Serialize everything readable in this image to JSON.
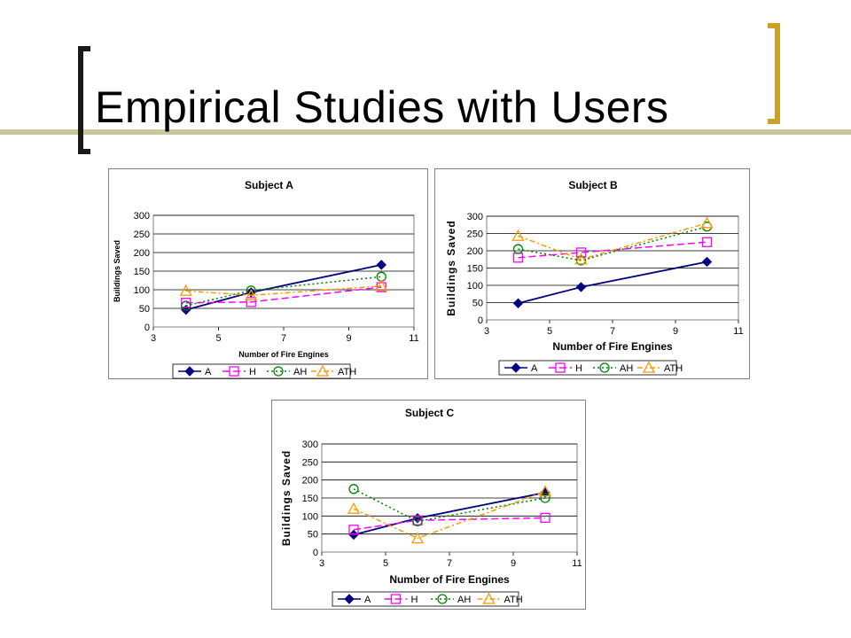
{
  "slide": {
    "title": "Empirical Studies with Users",
    "accent_color": "#c9a227",
    "bracket_color": "#1a1a1a",
    "rule_color": "#c8c89a"
  },
  "chart_data": [
    {
      "type": "line",
      "title": "Subject A",
      "xlabel": "Number of Fire Engines",
      "ylabel": "Buildings Saved",
      "xlim": [
        3,
        11
      ],
      "ylim": [
        0,
        300
      ],
      "xticks": [
        3,
        5,
        7,
        9,
        11
      ],
      "yticks": [
        0,
        50,
        100,
        150,
        200,
        250,
        300
      ],
      "grid": "horizontal",
      "legend": "bottom",
      "x": [
        4,
        6,
        10
      ],
      "series": [
        {
          "name": "A",
          "values": [
            46,
            93,
            167
          ],
          "color": "#000080",
          "dash": "",
          "marker": "diamond"
        },
        {
          "name": "H",
          "values": [
            65,
            67,
            107
          ],
          "color": "#ff00ff",
          "dash": "8,4",
          "marker": "square"
        },
        {
          "name": "AH",
          "values": [
            57,
            98,
            135
          ],
          "color": "#008000",
          "dash": "2,3",
          "marker": "circle"
        },
        {
          "name": "ATH",
          "values": [
            97,
            85,
            110
          ],
          "color": "#ff9900",
          "dash": "6,3,2,3",
          "marker": "triangle"
        }
      ]
    },
    {
      "type": "line",
      "title": "Subject B",
      "xlabel": "Number of Fire Engines",
      "ylabel": "Buildings Saved",
      "xlim": [
        3,
        11
      ],
      "ylim": [
        0,
        300
      ],
      "xticks": [
        3,
        5,
        7,
        9,
        11
      ],
      "yticks": [
        0,
        50,
        100,
        150,
        200,
        250,
        300
      ],
      "grid": "horizontal",
      "legend": "bottom",
      "x": [
        4,
        6,
        10
      ],
      "series": [
        {
          "name": "A",
          "values": [
            48,
            95,
            168
          ],
          "color": "#000080",
          "dash": "",
          "marker": "diamond"
        },
        {
          "name": "H",
          "values": [
            180,
            195,
            225
          ],
          "color": "#ff00ff",
          "dash": "8,4",
          "marker": "square"
        },
        {
          "name": "AH",
          "values": [
            205,
            172,
            270
          ],
          "color": "#008000",
          "dash": "2,3",
          "marker": "circle"
        },
        {
          "name": "ATH",
          "values": [
            243,
            175,
            280
          ],
          "color": "#ff9900",
          "dash": "6,3,2,3",
          "marker": "triangle"
        }
      ]
    },
    {
      "type": "line",
      "title": "Subject C",
      "xlabel": "Number of Fire Engines",
      "ylabel": "Buildings Saved",
      "xlim": [
        3,
        11
      ],
      "ylim": [
        0,
        300
      ],
      "xticks": [
        3,
        5,
        7,
        9,
        11
      ],
      "yticks": [
        0,
        50,
        100,
        150,
        200,
        250,
        300
      ],
      "grid": "horizontal",
      "legend": "bottom",
      "x": [
        4,
        6,
        10
      ],
      "series": [
        {
          "name": "A",
          "values": [
            48,
            94,
            165
          ],
          "color": "#000080",
          "dash": "",
          "marker": "diamond"
        },
        {
          "name": "H",
          "values": [
            62,
            88,
            95
          ],
          "color": "#ff00ff",
          "dash": "8,4",
          "marker": "square"
        },
        {
          "name": "AH",
          "values": [
            175,
            85,
            150
          ],
          "color": "#008000",
          "dash": "2,3",
          "marker": "circle"
        },
        {
          "name": "ATH",
          "values": [
            120,
            38,
            168
          ],
          "color": "#ff9900",
          "dash": "6,3,2,3",
          "marker": "triangle"
        }
      ]
    }
  ]
}
